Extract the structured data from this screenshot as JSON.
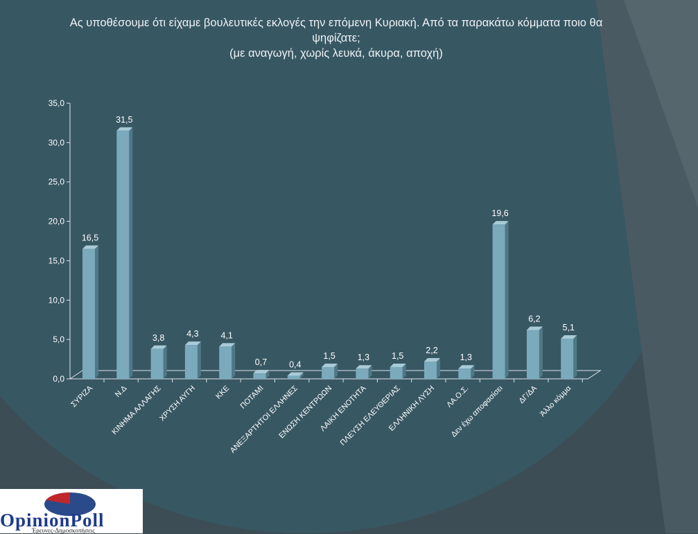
{
  "title": {
    "line1": "Ας υποθέσουμε ότι είχαμε βουλευτικές εκλογές την επόμενη  Κυριακή. Από τα παρακάτω κόμματα ποιο θα",
    "line2": "ψηφίζατε;",
    "line3": "(με αναγωγή, χωρίς λευκά, άκυρα, αποχή)"
  },
  "chart_data": {
    "type": "bar",
    "categories": [
      "ΣΥΡΙΖΑ",
      "Ν.Δ",
      "ΚΙΝΗΜΑ ΑΛΛΑΓΗΣ",
      "ΧΡΥΣΗ ΑΥΓΗ",
      "ΚΚΕ",
      "ΠΟΤΑΜΙ",
      "ΑΝΕΞΑΡΤΗΤΟΙ ΕΛΛΗΝΕΣ",
      "ΕΝΩΣΗ ΚΕΝΤΡΩΩΝ",
      "ΛΑΙΚΗ ΕΝΟΤΗΤΑ",
      "ΠΛΕΥΣΗ ΕΛΕΥΘΕΡΙΑΣ",
      "ΕΛΛΗΝΙΚΗ ΛΥΣΗ",
      "ΛΑ.Ο.Σ.",
      "Δεν έχω αποφασίσει",
      "ΔΓ/ΔΑ",
      "Άλλο κόμμα"
    ],
    "values": [
      16.5,
      31.5,
      3.8,
      4.3,
      4.1,
      0.7,
      0.4,
      1.5,
      1.3,
      1.5,
      2.2,
      1.3,
      19.6,
      6.2,
      5.1
    ],
    "value_labels": [
      "16,5",
      "31,5",
      "3,8",
      "4,3",
      "4,1",
      "0,7",
      "0,4",
      "1,5",
      "1,3",
      "1,5",
      "2,2",
      "1,3",
      "19,6",
      "6,2",
      "5,1"
    ],
    "yticks": [
      "0,0",
      "5,0",
      "10,0",
      "15,0",
      "20,0",
      "25,0",
      "30,0",
      "35,0"
    ],
    "ylim": [
      0,
      35
    ],
    "grid": false,
    "bar_color": "#7aaabb"
  },
  "logo": {
    "name": "OpinionPoll",
    "tagline": "Έρευνες-Δημοσκοπήσεις"
  }
}
